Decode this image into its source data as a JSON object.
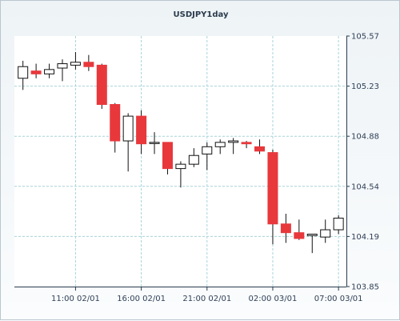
{
  "title": "USDJPY1day",
  "colors": {
    "up_fill": "#ffffff",
    "down_fill": "#e8383c",
    "candle_stroke": "#111111",
    "grid": "#a8d4d8",
    "axis": "#2a3b4d",
    "plot_bg": "#ffffff"
  },
  "chart_data": {
    "type": "candlestick",
    "title": "USDJPY1day",
    "xlabel": "",
    "ylabel": "",
    "ylim": [
      103.85,
      105.57
    ],
    "grid": true,
    "y_ticks": [
      "105.57",
      "105.23",
      "104.88",
      "104.54",
      "104.19",
      "103.85"
    ],
    "x_ticks": [
      {
        "label": "11:00 02/01",
        "index": 4
      },
      {
        "label": "16:00 02/01",
        "index": 9
      },
      {
        "label": "21:00 02/01",
        "index": 14
      },
      {
        "label": "02:00 03/01",
        "index": 19
      },
      {
        "label": "07:00 03/01",
        "index": 24
      }
    ],
    "candles": [
      {
        "o": 105.28,
        "h": 105.4,
        "l": 105.2,
        "c": 105.36
      },
      {
        "o": 105.33,
        "h": 105.38,
        "l": 105.28,
        "c": 105.31
      },
      {
        "o": 105.31,
        "h": 105.38,
        "l": 105.28,
        "c": 105.34
      },
      {
        "o": 105.35,
        "h": 105.41,
        "l": 105.26,
        "c": 105.38
      },
      {
        "o": 105.37,
        "h": 105.46,
        "l": 105.34,
        "c": 105.39
      },
      {
        "o": 105.39,
        "h": 105.44,
        "l": 105.33,
        "c": 105.36
      },
      {
        "o": 105.37,
        "h": 105.38,
        "l": 105.07,
        "c": 105.1
      },
      {
        "o": 105.1,
        "h": 105.11,
        "l": 104.77,
        "c": 104.85
      },
      {
        "o": 104.85,
        "h": 105.04,
        "l": 104.64,
        "c": 105.02
      },
      {
        "o": 105.02,
        "h": 105.06,
        "l": 104.76,
        "c": 104.83
      },
      {
        "o": 104.84,
        "h": 104.91,
        "l": 104.76,
        "c": 104.84
      },
      {
        "o": 104.84,
        "h": 104.84,
        "l": 104.62,
        "c": 104.66
      },
      {
        "o": 104.66,
        "h": 104.71,
        "l": 104.53,
        "c": 104.69
      },
      {
        "o": 104.69,
        "h": 104.8,
        "l": 104.67,
        "c": 104.75
      },
      {
        "o": 104.76,
        "h": 104.84,
        "l": 104.65,
        "c": 104.81
      },
      {
        "o": 104.81,
        "h": 104.86,
        "l": 104.76,
        "c": 104.84
      },
      {
        "o": 104.84,
        "h": 104.87,
        "l": 104.76,
        "c": 104.85
      },
      {
        "o": 104.84,
        "h": 104.85,
        "l": 104.8,
        "c": 104.83
      },
      {
        "o": 104.81,
        "h": 104.86,
        "l": 104.76,
        "c": 104.78
      },
      {
        "o": 104.77,
        "h": 104.79,
        "l": 104.14,
        "c": 104.28
      },
      {
        "o": 104.28,
        "h": 104.35,
        "l": 104.15,
        "c": 104.22
      },
      {
        "o": 104.22,
        "h": 104.31,
        "l": 104.17,
        "c": 104.18
      },
      {
        "o": 104.2,
        "h": 104.2,
        "l": 104.08,
        "c": 104.21
      },
      {
        "o": 104.19,
        "h": 104.31,
        "l": 104.15,
        "c": 104.24
      },
      {
        "o": 104.24,
        "h": 104.34,
        "l": 104.21,
        "c": 104.32
      }
    ]
  }
}
